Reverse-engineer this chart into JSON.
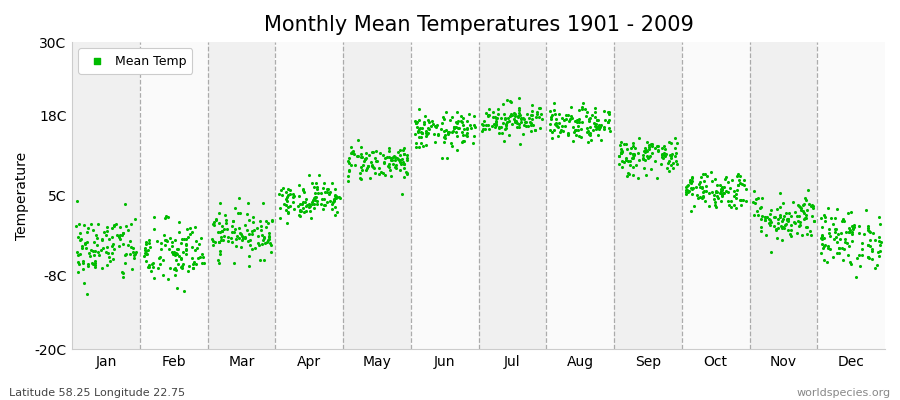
{
  "title": "Monthly Mean Temperatures 1901 - 2009",
  "ylabel": "Temperature",
  "xlabel_months": [
    "Jan",
    "Feb",
    "Mar",
    "Apr",
    "May",
    "Jun",
    "Jul",
    "Aug",
    "Sep",
    "Oct",
    "Nov",
    "Dec"
  ],
  "subtitle": "Latitude 58.25 Longitude 22.75",
  "watermark": "worldspecies.org",
  "ylim": [
    -20,
    30
  ],
  "yticks": [
    -20,
    -8,
    5,
    18,
    30
  ],
  "ytick_labels": [
    "-20C",
    "-8C",
    "5C",
    "18C",
    "30C"
  ],
  "n_years": 109,
  "start_year": 1901,
  "end_year": 2009,
  "mean_temps": [
    -3.5,
    -4.5,
    -1.0,
    4.5,
    10.5,
    15.5,
    17.5,
    16.5,
    11.5,
    6.0,
    1.5,
    -2.0
  ],
  "std_temps": [
    2.8,
    2.8,
    2.0,
    1.5,
    1.5,
    1.5,
    1.4,
    1.4,
    1.6,
    1.6,
    2.0,
    2.4
  ],
  "marker_color": "#00BB00",
  "marker_size": 5,
  "bg_color": "#FFFFFF",
  "plot_bg_color_odd": "#F0F0F0",
  "plot_bg_color_even": "#FAFAFA",
  "grid_color": "#999999",
  "title_fontsize": 15,
  "axis_fontsize": 10,
  "tick_fontsize": 10,
  "legend_label": "Mean Temp",
  "legend_fontsize": 9
}
